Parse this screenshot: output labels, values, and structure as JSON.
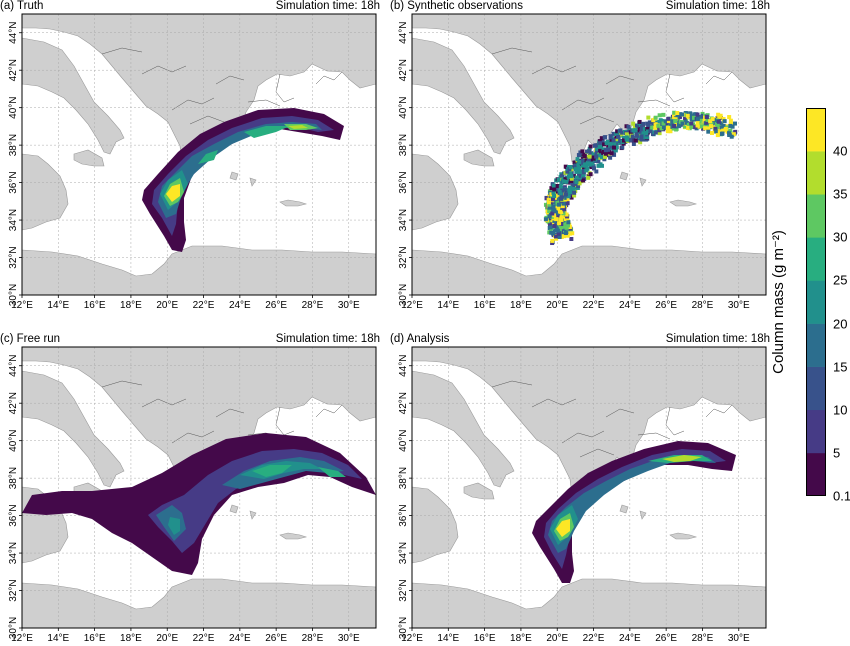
{
  "panels": [
    {
      "id": "a",
      "title": "(a) Truth",
      "time": "Simulation time: 18h"
    },
    {
      "id": "b",
      "title": "(b) Synthetic observations",
      "time": "Simulation time: 18h"
    },
    {
      "id": "c",
      "title": "(c) Free run",
      "time": "Simulation time: 18h"
    },
    {
      "id": "d",
      "title": "(d) Analysis",
      "time": "Simulation time: 18h"
    }
  ],
  "axes": {
    "lon_labels": [
      "12°E",
      "14°E",
      "16°E",
      "18°E",
      "20°E",
      "22°E",
      "24°E",
      "26°E",
      "28°E",
      "30°E"
    ],
    "lat_labels": [
      "30°N",
      "32°N",
      "34°N",
      "36°N",
      "38°N",
      "40°N",
      "42°N",
      "44°N"
    ],
    "lon_range": [
      12,
      31.5
    ],
    "lat_range": [
      30,
      45
    ]
  },
  "colorbar": {
    "title": "Column mass (g m⁻²)",
    "tick_labels": [
      "0.1",
      "5",
      "10",
      "15",
      "20",
      "25",
      "30",
      "35",
      "40"
    ],
    "colors": [
      "#44094a",
      "#463b86",
      "#38528b",
      "#2c6e8e",
      "#21908c",
      "#28ae80",
      "#5ec862",
      "#b2dd2d",
      "#fde725"
    ],
    "levels": [
      0.1,
      5,
      10,
      15,
      20,
      25,
      30,
      35,
      40
    ]
  },
  "colors": {
    "land": "#cfcfcf",
    "sea": "#ffffff",
    "border": "#555555",
    "grid": "#aaaaaa"
  }
}
